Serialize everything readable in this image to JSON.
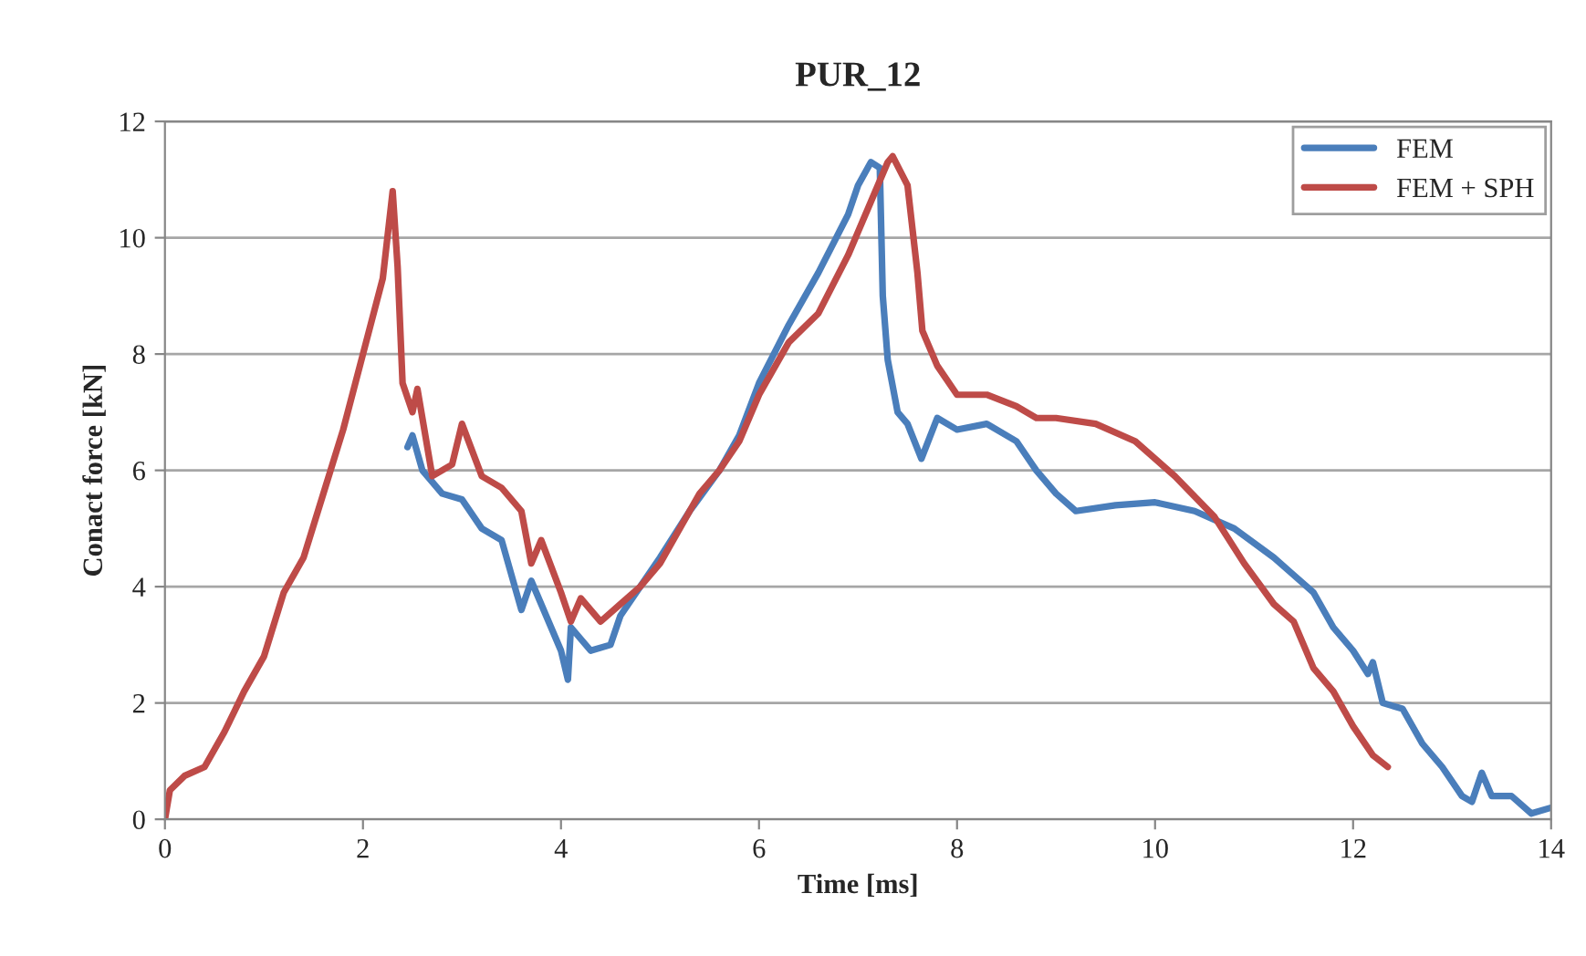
{
  "chart_data": {
    "type": "line",
    "title": "PUR_12",
    "xlabel": "Time [ms]",
    "ylabel": "Conact force [kN]",
    "xlim": [
      0,
      14
    ],
    "xticks": [
      0,
      2,
      4,
      6,
      8,
      10,
      12,
      14
    ],
    "ylim": [
      0,
      12
    ],
    "yticks": [
      0,
      2,
      4,
      6,
      8,
      10,
      12
    ],
    "grid": "y",
    "legend": "top right",
    "marker": "none",
    "line_style": "solid",
    "series": [
      {
        "name": "FEM",
        "color": "#4a7ebb",
        "x": [
          2.45,
          2.5,
          2.6,
          2.8,
          3.0,
          3.2,
          3.4,
          3.6,
          3.7,
          3.9,
          4.0,
          4.07,
          4.1,
          4.3,
          4.5,
          4.6,
          4.8,
          5.0,
          5.3,
          5.6,
          5.8,
          6.0,
          6.3,
          6.6,
          6.9,
          7.0,
          7.13,
          7.22,
          7.25,
          7.3,
          7.4,
          7.5,
          7.64,
          7.8,
          8.0,
          8.3,
          8.6,
          8.8,
          9.0,
          9.2,
          9.6,
          10.0,
          10.4,
          10.8,
          11.2,
          11.4,
          11.6,
          11.8,
          12.0,
          12.15,
          12.2,
          12.3,
          12.5,
          12.7,
          12.9,
          13.1,
          13.2,
          13.3,
          13.4,
          13.6,
          13.8,
          14.0
        ],
        "values": [
          6.4,
          6.6,
          6.0,
          5.6,
          5.5,
          5.0,
          4.8,
          3.6,
          4.1,
          3.3,
          2.9,
          2.4,
          3.3,
          2.9,
          3.0,
          3.5,
          4.0,
          4.5,
          5.3,
          6.0,
          6.6,
          7.5,
          8.5,
          9.4,
          10.4,
          10.9,
          11.3,
          11.2,
          9.0,
          7.9,
          7.0,
          6.8,
          6.2,
          6.9,
          6.7,
          6.8,
          6.5,
          6.0,
          5.6,
          5.3,
          5.4,
          5.45,
          5.3,
          5.0,
          4.5,
          4.2,
          3.9,
          3.3,
          2.9,
          2.5,
          2.7,
          2.0,
          1.9,
          1.3,
          0.9,
          0.4,
          0.3,
          0.8,
          0.4,
          0.4,
          0.1,
          0.2
        ]
      },
      {
        "name": "FEM + SPH",
        "color": "#be4b48",
        "x": [
          0,
          0.05,
          0.2,
          0.4,
          0.6,
          0.8,
          1.0,
          1.2,
          1.4,
          1.6,
          1.8,
          2.0,
          2.2,
          2.3,
          2.35,
          2.4,
          2.5,
          2.55,
          2.7,
          2.9,
          3.0,
          3.2,
          3.4,
          3.6,
          3.7,
          3.8,
          4.0,
          4.1,
          4.2,
          4.4,
          4.6,
          4.8,
          5.0,
          5.4,
          5.6,
          5.8,
          6.0,
          6.3,
          6.6,
          6.9,
          7.1,
          7.3,
          7.35,
          7.5,
          7.6,
          7.65,
          7.8,
          8.0,
          8.3,
          8.6,
          8.8,
          9.0,
          9.4,
          9.8,
          10.2,
          10.6,
          10.9,
          11.2,
          11.4,
          11.6,
          11.8,
          12.0,
          12.2,
          12.35
        ],
        "values": [
          0,
          0.5,
          0.75,
          0.9,
          1.5,
          2.2,
          2.8,
          3.9,
          4.5,
          5.6,
          6.7,
          8.0,
          9.3,
          10.8,
          9.5,
          7.5,
          7.0,
          7.4,
          5.9,
          6.1,
          6.8,
          5.9,
          5.7,
          5.3,
          4.4,
          4.8,
          3.9,
          3.4,
          3.8,
          3.4,
          3.7,
          4.0,
          4.4,
          5.6,
          6.0,
          6.5,
          7.3,
          8.2,
          8.7,
          9.7,
          10.5,
          11.3,
          11.4,
          10.9,
          9.4,
          8.4,
          7.8,
          7.3,
          7.3,
          7.1,
          6.9,
          6.9,
          6.8,
          6.5,
          5.9,
          5.2,
          4.4,
          3.7,
          3.4,
          2.6,
          2.2,
          1.6,
          1.1,
          0.9
        ]
      }
    ]
  }
}
